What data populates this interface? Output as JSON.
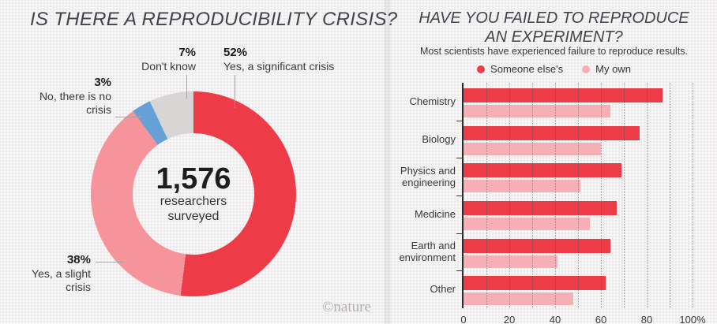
{
  "left_panel": {
    "title": "IS THERE A REPRODUCIBILITY CRISIS?",
    "watermark": "©nature",
    "callouts": {
      "dont_know": {
        "value": "7%",
        "label": "Don't know"
      },
      "significant": {
        "value": "52%",
        "label": "Yes, a significant crisis"
      },
      "no_crisis": {
        "value": "3%",
        "line1": "No, there is no",
        "line2": "crisis"
      },
      "slight": {
        "value": "38%",
        "line1": "Yes, a slight",
        "line2": "crisis"
      }
    }
  },
  "right_panel": {
    "title_line1": "HAVE YOU FAILED TO REPRODUCE",
    "title_line2": "AN EXPERIMENT?",
    "subtitle": "Most scientists have experienced failure to reproduce results."
  },
  "chart_data": [
    {
      "type": "pie",
      "variant": "donut",
      "title": "IS THERE A REPRODUCIBILITY CRISIS?",
      "center_value": "1,576",
      "center_label_1": "researchers",
      "center_label_2": "surveyed",
      "start_angle": "12 o'clock",
      "direction": "clockwise",
      "slices": [
        {
          "label": "Yes, a significant crisis",
          "value": 52,
          "color": "#ee3b48"
        },
        {
          "label": "Yes, a slight crisis",
          "value": 38,
          "color": "#f6949b"
        },
        {
          "label": "No, there is no crisis",
          "value": 3,
          "color": "#65a0d7"
        },
        {
          "label": "Don't know",
          "value": 7,
          "color": "#d8d6d5"
        }
      ]
    },
    {
      "type": "bar",
      "orientation": "horizontal",
      "title": "HAVE YOU FAILED TO REPRODUCE AN EXPERIMENT?",
      "subtitle": "Most scientists have experienced failure to reproduce results.",
      "categories": [
        "Chemistry",
        "Biology",
        "Physics and engineering",
        "Medicine",
        "Earth and environment",
        "Other"
      ],
      "series": [
        {
          "name": "Someone else's",
          "color": "#ee3b48",
          "values": [
            87,
            77,
            69,
            67,
            64,
            62
          ]
        },
        {
          "name": "My own",
          "color": "#f6b0b5",
          "values": [
            64,
            60,
            51,
            55,
            41,
            48
          ]
        }
      ],
      "xlim": [
        0,
        100
      ],
      "x_ticks": [
        0,
        20,
        40,
        60,
        80,
        100
      ],
      "x_tick_labels": [
        "0",
        "20",
        "40",
        "60",
        "80",
        "100%"
      ],
      "gridline_step": 10,
      "unit": "%",
      "legend_position": "top",
      "grid": "dotted-vertical"
    }
  ]
}
